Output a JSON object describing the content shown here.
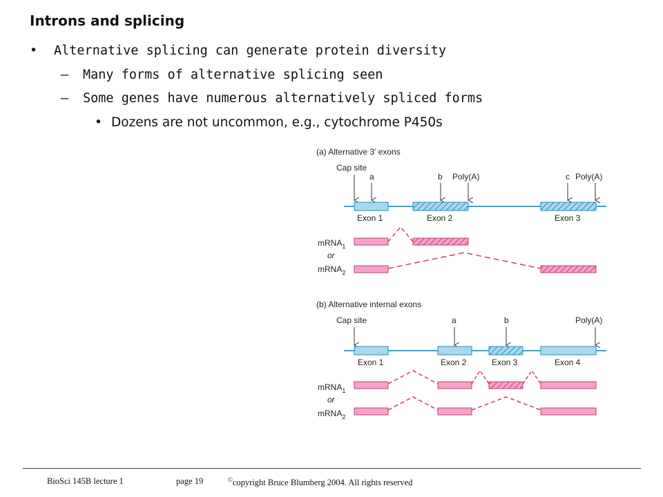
{
  "slide": {
    "title": "Introns and splicing",
    "bullets": [
      {
        "marker": "•",
        "text": "Alternative splicing can generate protein diversity"
      },
      {
        "marker": "–",
        "text": "Many forms of alternative splicing seen"
      },
      {
        "marker": "–",
        "text": "Some genes have numerous alternatively spliced forms"
      },
      {
        "marker": "•",
        "text": "Dozens are not uncommon, e.g., cytochrome P450s"
      }
    ]
  },
  "figure": {
    "panel_a": {
      "title": "(a) Alternative 3' exons",
      "cap_site": "Cap site",
      "site_a": "a",
      "site_b": "b",
      "site_c": "c",
      "polya_1": "Poly(A)",
      "polya_2": "Poly(A)",
      "exon1": "Exon 1",
      "exon2": "Exon 2",
      "exon3": "Exon 3",
      "mrna1": "mRNA",
      "mrna1_sub": "1",
      "or": "or",
      "mrna2": "mRNA",
      "mrna2_sub": "2"
    },
    "panel_b": {
      "title": "(b) Alternative internal exons",
      "cap_site": "Cap site",
      "site_a": "a",
      "site_b": "b",
      "polya": "Poly(A)",
      "exon1": "Exon 1",
      "exon2": "Exon 2",
      "exon3": "Exon 3",
      "exon4": "Exon 4",
      "mrna1": "mRNA",
      "mrna1_sub": "1",
      "or": "or",
      "mrna2": "mRNA",
      "mrna2_sub": "2"
    },
    "colors": {
      "gene_line": "#29a9e0",
      "exon_fill": "#a8d8f0",
      "exon_stroke": "#1b8fc9",
      "mrna_fill": "#f5a3c7",
      "mrna_stroke": "#d6337f",
      "connector": "#d6337f",
      "arrow": "#333333"
    }
  },
  "footer": {
    "course": "BioSci 145B lecture 1",
    "page": "page 19",
    "copyright_mark": "©",
    "copyright_text": "copyright Bruce Blumberg 2004. All rights reserved"
  }
}
